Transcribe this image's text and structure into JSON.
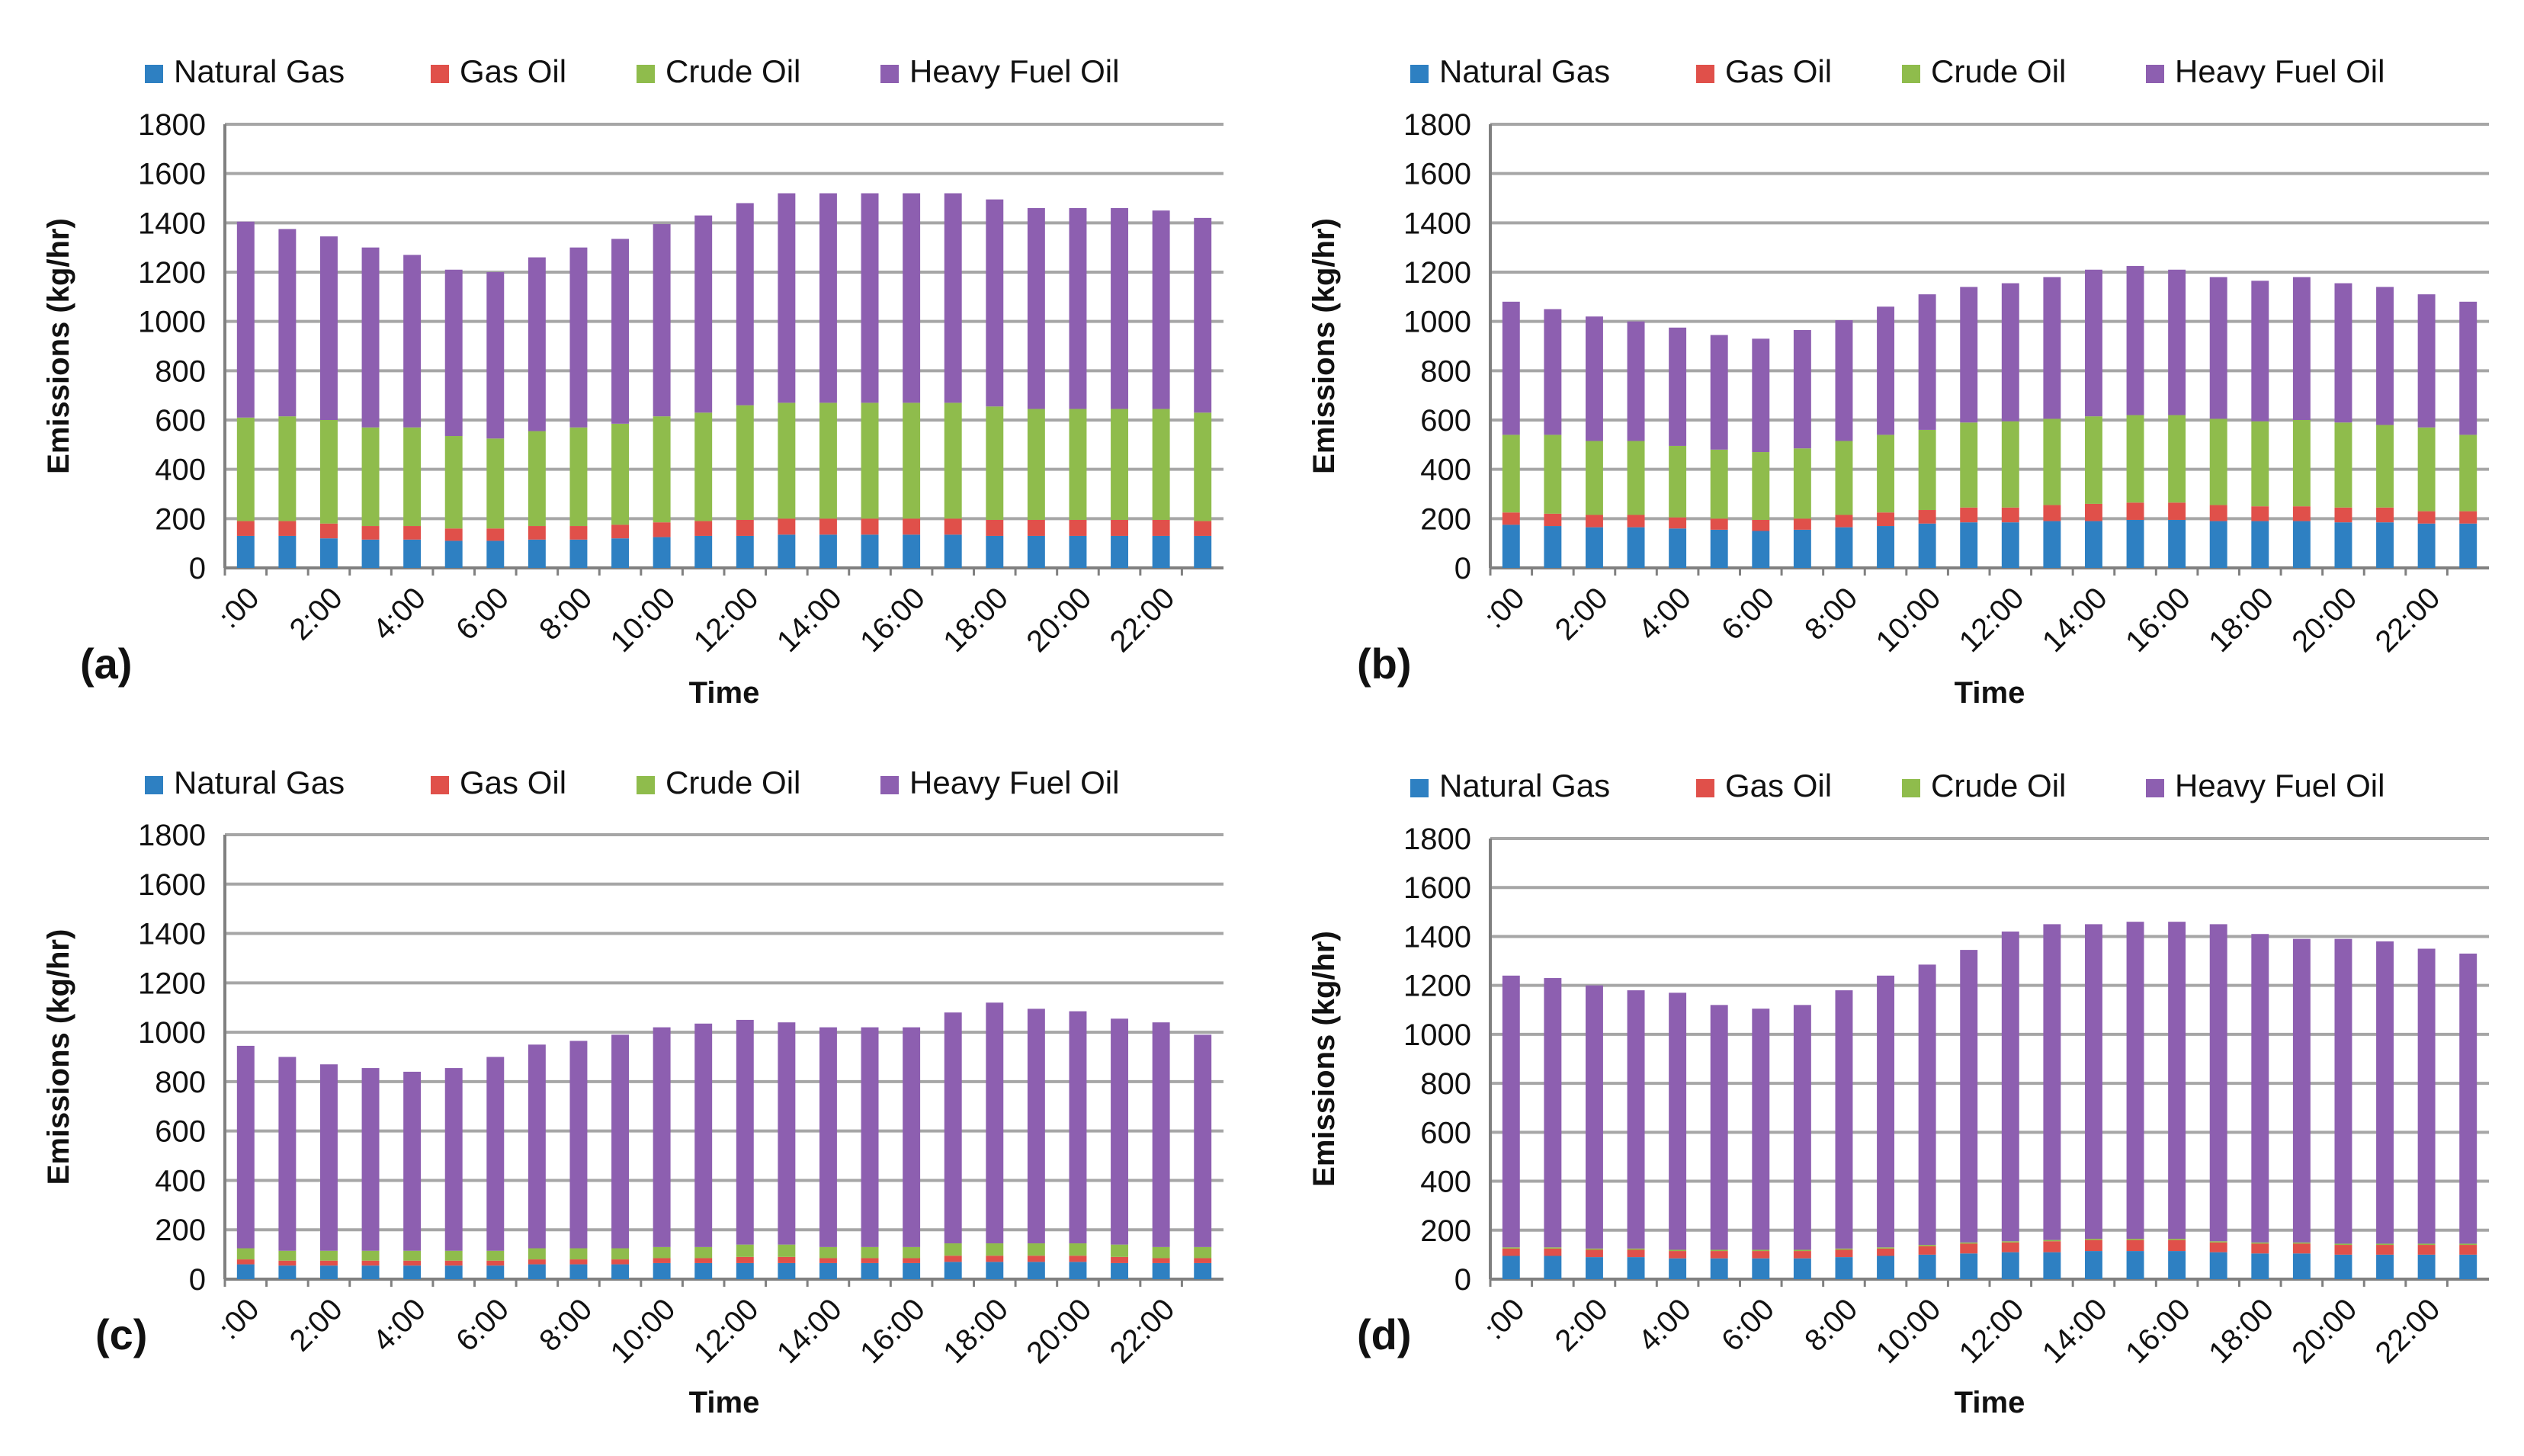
{
  "colors": {
    "natural_gas": "#2e80c2",
    "gas_oil": "#e0504a",
    "crude_oil": "#8fbc4c",
    "heavy_fuel_oil": "#8d5fb0",
    "grid": "#a6a6a6",
    "axis": "#808080"
  },
  "chart_data": [
    {
      "type": "bar",
      "stacked": true,
      "panel_label": "(a)",
      "xlabel": "Time",
      "ylabel": "Emissions (kg/hr)",
      "ylim": [
        0,
        1800
      ],
      "yticks": [
        "0",
        "200",
        "400",
        "600",
        "800",
        "1000",
        "1200",
        "1400",
        "1600",
        "1800"
      ],
      "xtick_labels": [
        ":00",
        "2:00",
        "4:00",
        "6:00",
        "8:00",
        "10:00",
        "12:00",
        "14:00",
        "16:00",
        "18:00",
        "20:00",
        "22:00"
      ],
      "legend": [
        "Natural  Gas",
        "Gas Oil",
        "Crude  Oil",
        "Heavy Fuel Oil"
      ],
      "categories": [
        "0:00",
        "1:00",
        "2:00",
        "3:00",
        "4:00",
        "5:00",
        "6:00",
        "7:00",
        "8:00",
        "9:00",
        "10:00",
        "11:00",
        "12:00",
        "13:00",
        "14:00",
        "15:00",
        "16:00",
        "17:00",
        "18:00",
        "19:00",
        "20:00",
        "21:00",
        "22:00",
        "23:00"
      ],
      "series": [
        {
          "name": "Natural Gas",
          "values": [
            130,
            130,
            120,
            115,
            115,
            110,
            110,
            115,
            115,
            120,
            125,
            130,
            130,
            135,
            135,
            135,
            135,
            135,
            130,
            130,
            130,
            130,
            130,
            130
          ]
        },
        {
          "name": "Gas Oil",
          "values": [
            60,
            60,
            60,
            55,
            55,
            50,
            50,
            55,
            55,
            55,
            60,
            60,
            65,
            65,
            65,
            65,
            65,
            65,
            65,
            65,
            65,
            65,
            65,
            60
          ]
        },
        {
          "name": "Crude Oil",
          "values": [
            420,
            425,
            420,
            400,
            400,
            375,
            365,
            385,
            400,
            410,
            430,
            440,
            465,
            470,
            470,
            470,
            470,
            470,
            460,
            450,
            450,
            450,
            450,
            440
          ]
        },
        {
          "name": "Heavy Fuel Oil",
          "values": [
            795,
            760,
            745,
            730,
            700,
            675,
            675,
            705,
            730,
            750,
            780,
            800,
            820,
            850,
            850,
            850,
            850,
            850,
            840,
            815,
            815,
            815,
            805,
            790
          ]
        }
      ]
    },
    {
      "type": "bar",
      "stacked": true,
      "panel_label": "(b)",
      "xlabel": "Time",
      "ylabel": "Emissions (kg/hr)",
      "ylim": [
        0,
        1800
      ],
      "yticks": [
        "0",
        "200",
        "400",
        "600",
        "800",
        "1000",
        "1200",
        "1400",
        "1600",
        "1800"
      ],
      "xtick_labels": [
        ":00",
        "2:00",
        "4:00",
        "6:00",
        "8:00",
        "10:00",
        "12:00",
        "14:00",
        "16:00",
        "18:00",
        "20:00",
        "22:00"
      ],
      "legend": [
        "Natural  Gas",
        "Gas Oil",
        "Crude  Oil",
        "Heavy Fuel Oil"
      ],
      "categories": [
        "0:00",
        "1:00",
        "2:00",
        "3:00",
        "4:00",
        "5:00",
        "6:00",
        "7:00",
        "8:00",
        "9:00",
        "10:00",
        "11:00",
        "12:00",
        "13:00",
        "14:00",
        "15:00",
        "16:00",
        "17:00",
        "18:00",
        "19:00",
        "20:00",
        "21:00",
        "22:00",
        "23:00"
      ],
      "series": [
        {
          "name": "Natural Gas",
          "values": [
            175,
            170,
            165,
            165,
            160,
            155,
            150,
            155,
            165,
            170,
            180,
            185,
            185,
            190,
            190,
            195,
            195,
            190,
            190,
            190,
            185,
            185,
            180,
            180
          ]
        },
        {
          "name": "Gas Oil",
          "values": [
            50,
            50,
            50,
            50,
            45,
            45,
            45,
            45,
            50,
            55,
            55,
            60,
            60,
            65,
            70,
            70,
            70,
            65,
            60,
            60,
            60,
            60,
            50,
            50
          ]
        },
        {
          "name": "Crude Oil",
          "values": [
            315,
            320,
            300,
            300,
            290,
            280,
            275,
            285,
            300,
            315,
            325,
            345,
            350,
            350,
            355,
            355,
            355,
            350,
            345,
            350,
            345,
            335,
            340,
            310
          ]
        },
        {
          "name": "Heavy Fuel Oil",
          "values": [
            540,
            510,
            505,
            485,
            480,
            465,
            460,
            480,
            490,
            520,
            550,
            550,
            560,
            575,
            595,
            605,
            590,
            575,
            570,
            580,
            565,
            560,
            540,
            540
          ]
        }
      ]
    },
    {
      "type": "bar",
      "stacked": true,
      "panel_label": "(c)",
      "xlabel": "Time",
      "ylabel": "Emissions (kg/hr)",
      "ylim": [
        0,
        1800
      ],
      "yticks": [
        "0",
        "200",
        "400",
        "600",
        "800",
        "1000",
        "1200",
        "1400",
        "1600",
        "1800"
      ],
      "xtick_labels": [
        ":00",
        "2:00",
        "4:00",
        "6:00",
        "8:00",
        "10:00",
        "12:00",
        "14:00",
        "16:00",
        "18:00",
        "20:00",
        "22:00"
      ],
      "legend": [
        "Natural  Gas",
        "Gas Oil",
        "Crude  Oil",
        "Heavy Fuel Oil"
      ],
      "categories": [
        "0:00",
        "1:00",
        "2:00",
        "3:00",
        "4:00",
        "5:00",
        "6:00",
        "7:00",
        "8:00",
        "9:00",
        "10:00",
        "11:00",
        "12:00",
        "13:00",
        "14:00",
        "15:00",
        "16:00",
        "17:00",
        "18:00",
        "19:00",
        "20:00",
        "21:00",
        "22:00",
        "23:00"
      ],
      "series": [
        {
          "name": "Natural Gas",
          "values": [
            60,
            55,
            55,
            55,
            55,
            55,
            55,
            60,
            60,
            60,
            65,
            65,
            65,
            65,
            65,
            65,
            65,
            70,
            70,
            70,
            70,
            65,
            65,
            65
          ]
        },
        {
          "name": "Gas Oil",
          "values": [
            20,
            20,
            20,
            20,
            20,
            20,
            20,
            20,
            20,
            20,
            20,
            20,
            25,
            25,
            20,
            20,
            20,
            25,
            25,
            25,
            25,
            25,
            20,
            20
          ]
        },
        {
          "name": "Crude Oil",
          "values": [
            45,
            40,
            40,
            40,
            40,
            40,
            40,
            45,
            45,
            45,
            45,
            45,
            50,
            50,
            45,
            45,
            45,
            50,
            50,
            50,
            50,
            50,
            45,
            45
          ]
        },
        {
          "name": "Heavy Fuel Oil",
          "values": [
            820,
            785,
            755,
            740,
            725,
            740,
            785,
            825,
            840,
            865,
            890,
            905,
            910,
            900,
            890,
            890,
            890,
            935,
            975,
            950,
            940,
            915,
            910,
            860
          ]
        }
      ]
    },
    {
      "type": "bar",
      "stacked": true,
      "panel_label": "(d)",
      "xlabel": "Time",
      "ylabel": "Emissions (kg/hr)",
      "ylim": [
        0,
        1800
      ],
      "yticks": [
        "0",
        "200",
        "400",
        "600",
        "800",
        "1000",
        "1200",
        "1400",
        "1600",
        "1800"
      ],
      "xtick_labels": [
        ":00",
        "2:00",
        "4:00",
        "6:00",
        "8:00",
        "10:00",
        "12:00",
        "14:00",
        "16:00",
        "18:00",
        "20:00",
        "22:00"
      ],
      "legend": [
        "Natural  Gas",
        "Gas Oil",
        "Crude  Oil",
        "Heavy Fuel Oil"
      ],
      "categories": [
        "0:00",
        "1:00",
        "2:00",
        "3:00",
        "4:00",
        "5:00",
        "6:00",
        "7:00",
        "8:00",
        "9:00",
        "10:00",
        "11:00",
        "12:00",
        "13:00",
        "14:00",
        "15:00",
        "16:00",
        "17:00",
        "18:00",
        "19:00",
        "20:00",
        "21:00",
        "22:00",
        "23:00"
      ],
      "series": [
        {
          "name": "Natural Gas",
          "values": [
            95,
            95,
            90,
            90,
            85,
            85,
            85,
            85,
            90,
            95,
            100,
            105,
            110,
            110,
            115,
            115,
            115,
            110,
            105,
            105,
            100,
            100,
            100,
            100
          ]
        },
        {
          "name": "Gas Oil",
          "values": [
            30,
            30,
            30,
            30,
            30,
            30,
            30,
            30,
            30,
            30,
            35,
            40,
            40,
            45,
            45,
            45,
            45,
            40,
            40,
            40,
            40,
            40,
            40,
            40
          ]
        },
        {
          "name": "Crude Oil",
          "values": [
            5,
            5,
            5,
            5,
            5,
            5,
            5,
            5,
            5,
            5,
            5,
            5,
            5,
            5,
            5,
            5,
            5,
            5,
            5,
            5,
            5,
            5,
            5,
            5
          ]
        },
        {
          "name": "Heavy Fuel Oil",
          "values": [
            1110,
            1100,
            1075,
            1055,
            1050,
            1000,
            985,
            1000,
            1055,
            1110,
            1145,
            1195,
            1265,
            1290,
            1285,
            1295,
            1295,
            1295,
            1260,
            1240,
            1245,
            1235,
            1205,
            1185
          ]
        }
      ]
    }
  ]
}
